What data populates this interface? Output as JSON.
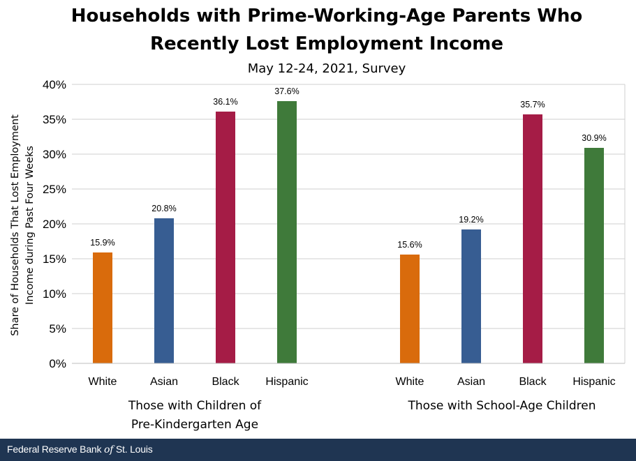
{
  "chart_data": {
    "type": "bar",
    "title_line1": "Households with Prime-Working-Age Parents Who",
    "title_line2": "Recently Lost Employment Income",
    "subtitle": "May 12-24, 2021, Survey",
    "ylabel_line1": "Share of Households That Lost Employment",
    "ylabel_line2": "Income during Past Four Weeks",
    "ylim": [
      0,
      40
    ],
    "yticks": [
      "0%",
      "5%",
      "10%",
      "15%",
      "20%",
      "25%",
      "30%",
      "35%",
      "40%"
    ],
    "grid": true,
    "groups": [
      {
        "label_line1": "Those with Children of",
        "label_line2": "Pre-Kindergarten  Age",
        "bars": [
          {
            "category": "White",
            "value": 15.9,
            "label": "15.9%",
            "color": "#d96b0c"
          },
          {
            "category": "Asian",
            "value": 20.8,
            "label": "20.8%",
            "color": "#375d92"
          },
          {
            "category": "Black",
            "value": 36.1,
            "label": "36.1%",
            "color": "#a51c46"
          },
          {
            "category": "Hispanic",
            "value": 37.6,
            "label": "37.6%",
            "color": "#3f7a3a"
          }
        ]
      },
      {
        "label_line1": "Those with School-Age Children",
        "label_line2": "",
        "bars": [
          {
            "category": "White",
            "value": 15.6,
            "label": "15.6%",
            "color": "#d96b0c"
          },
          {
            "category": "Asian",
            "value": 19.2,
            "label": "19.2%",
            "color": "#375d92"
          },
          {
            "category": "Black",
            "value": 35.7,
            "label": "35.7%",
            "color": "#a51c46"
          },
          {
            "category": "Hispanic",
            "value": 30.9,
            "label": "30.9%",
            "color": "#3f7a3a"
          }
        ]
      }
    ]
  },
  "footer": {
    "source_before": "Federal Reserve Bank ",
    "source_of": "of",
    "source_after": " St. Louis"
  }
}
